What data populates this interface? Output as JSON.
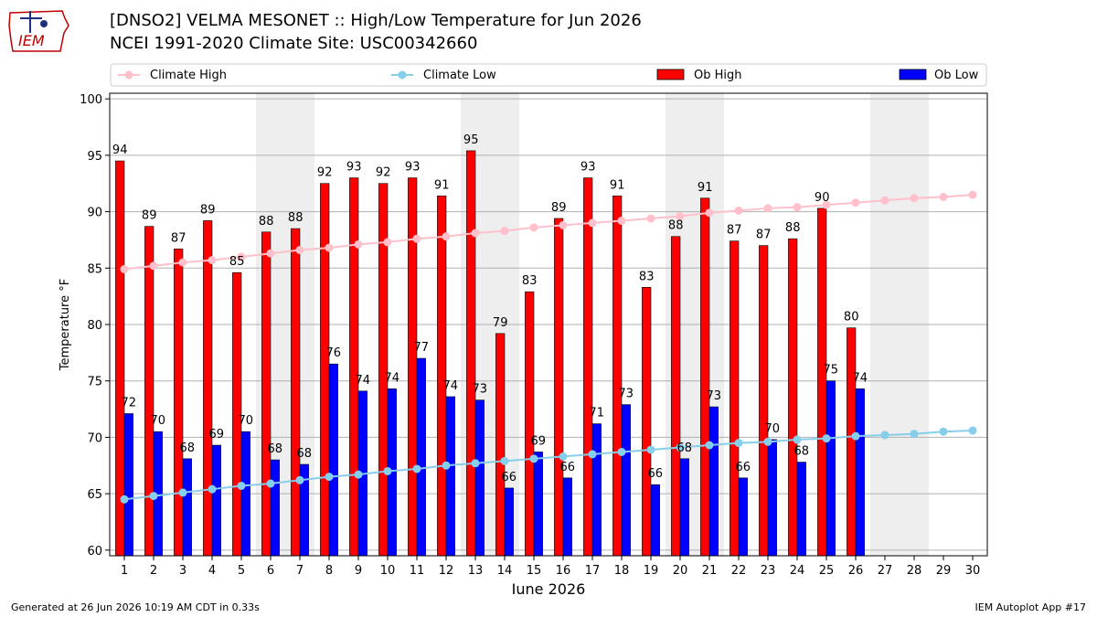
{
  "header": {
    "title_line1": "[DNSO2] VELMA MESONET :: High/Low Temperature for Jun 2026",
    "title_line2": "NCEI 1991-2020 Climate Site: USC00342660",
    "logo_text": "IEM"
  },
  "footer": {
    "generated": "Generated at 26 Jun 2026 10:19 AM CDT in 0.33s",
    "app": "IEM Autoplot App #17"
  },
  "colors": {
    "ob_high": "#ff0000",
    "ob_low": "#0000ff",
    "climate_high": "#ffc0cb",
    "climate_low": "#87ceeb",
    "weekend_shade": "#eeeeee"
  },
  "chart_data": {
    "type": "bar",
    "xlabel": "June 2026",
    "ylabel": "Temperature °F",
    "ylim": [
      59.5,
      100.5
    ],
    "yticks": [
      60,
      65,
      70,
      75,
      80,
      85,
      90,
      95,
      100
    ],
    "grid": "horizontal",
    "legend": "top",
    "categories": [
      "1",
      "2",
      "3",
      "4",
      "5",
      "6",
      "7",
      "8",
      "9",
      "10",
      "11",
      "12",
      "13",
      "14",
      "15",
      "16",
      "17",
      "18",
      "19",
      "20",
      "21",
      "22",
      "23",
      "24",
      "25",
      "26",
      "27",
      "28",
      "29",
      "30"
    ],
    "shaded_days": [
      [
        6,
        7
      ],
      [
        13,
        14
      ],
      [
        20,
        21
      ],
      [
        27,
        28
      ]
    ],
    "series": [
      {
        "name": "Ob High",
        "kind": "bar",
        "values": [
          94.5,
          88.7,
          86.7,
          89.2,
          84.6,
          88.2,
          88.5,
          92.5,
          93.0,
          92.5,
          93.0,
          91.4,
          95.4,
          79.2,
          82.9,
          89.4,
          93.0,
          91.4,
          83.3,
          87.8,
          91.2,
          87.4,
          87.0,
          87.6,
          90.3,
          79.7,
          null,
          null,
          null,
          null
        ],
        "labels": [
          "94",
          "89",
          "87",
          "89",
          "85",
          "88",
          "88",
          "92",
          "93",
          "92",
          "93",
          "91",
          "95",
          "79",
          "83",
          "89",
          "93",
          "91",
          "83",
          "88",
          "91",
          "87",
          "87",
          "88",
          "90",
          "80",
          "",
          "",
          "",
          ""
        ]
      },
      {
        "name": "Ob Low",
        "kind": "bar",
        "values": [
          72.1,
          70.5,
          68.1,
          69.3,
          70.5,
          68.0,
          67.6,
          76.5,
          74.1,
          74.3,
          77.0,
          73.6,
          73.3,
          65.5,
          68.7,
          66.4,
          71.2,
          72.9,
          65.8,
          68.1,
          72.7,
          66.4,
          69.8,
          67.8,
          75.0,
          74.3,
          null,
          null,
          null,
          null
        ],
        "labels": [
          "72",
          "70",
          "68",
          "69",
          "70",
          "68",
          "68",
          "76",
          "74",
          "74",
          "77",
          "74",
          "73",
          "66",
          "69",
          "66",
          "71",
          "73",
          "66",
          "68",
          "73",
          "66",
          "70",
          "68",
          "75",
          "74",
          "",
          "",
          "",
          ""
        ]
      },
      {
        "name": "Climate High",
        "kind": "line",
        "values": [
          84.9,
          85.2,
          85.5,
          85.7,
          86.0,
          86.3,
          86.6,
          86.8,
          87.1,
          87.3,
          87.6,
          87.8,
          88.1,
          88.3,
          88.6,
          88.8,
          89.0,
          89.2,
          89.4,
          89.6,
          89.9,
          90.1,
          90.3,
          90.4,
          90.6,
          90.8,
          91.0,
          91.2,
          91.3,
          91.5
        ]
      },
      {
        "name": "Climate Low",
        "kind": "line",
        "values": [
          64.5,
          64.8,
          65.1,
          65.4,
          65.7,
          65.9,
          66.2,
          66.5,
          66.7,
          67.0,
          67.2,
          67.5,
          67.7,
          67.9,
          68.1,
          68.3,
          68.5,
          68.7,
          68.9,
          69.1,
          69.3,
          69.5,
          69.6,
          69.8,
          69.9,
          70.1,
          70.2,
          70.3,
          70.5,
          70.6
        ]
      }
    ]
  }
}
